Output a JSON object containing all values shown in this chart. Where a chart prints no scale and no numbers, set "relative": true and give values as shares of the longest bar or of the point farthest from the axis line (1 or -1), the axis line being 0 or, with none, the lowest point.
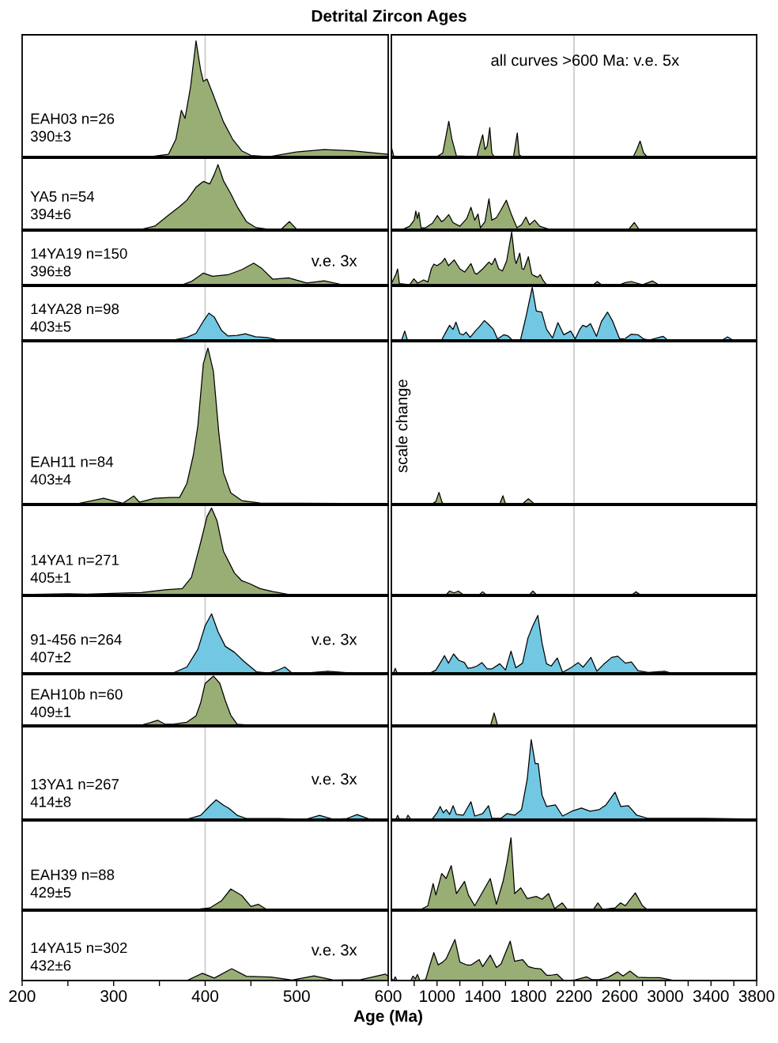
{
  "chart_data": [
    {
      "type": "area",
      "title": "Detrital Zircon Ages",
      "relative": true,
      "xlim": [
        200,
        600
      ],
      "tick_labels": false,
      "annotations": [
        "EAH03 n=26\n390±3"
      ],
      "ref_lines": [
        {
          "axis": "x",
          "value": 400,
          "color": "#cccccc"
        }
      ],
      "series": [
        {
          "color": "#99ae74",
          "x": [
            200,
            340,
            360,
            368,
            374,
            378,
            384,
            390,
            395,
            398,
            402,
            408,
            420,
            430,
            440,
            450,
            470,
            500,
            530,
            560,
            600
          ],
          "values": [
            0,
            0,
            0.02,
            0.15,
            0.4,
            0.33,
            0.6,
            1.0,
            0.75,
            0.65,
            0.67,
            0.55,
            0.3,
            0.15,
            0.05,
            0.01,
            0,
            0.04,
            0.06,
            0.05,
            0.02
          ]
        }
      ]
    },
    {
      "type": "area",
      "subtitle": "all curves >600 Ma: v.e. 5x",
      "relative": true,
      "xlim": [
        600,
        3800
      ],
      "tick_labels": false,
      "ref_lines": [
        {
          "axis": "x",
          "value": 2200,
          "color": "#cccccc"
        }
      ],
      "series": [
        {
          "color": "#99ae74",
          "x": [
            600,
            620,
            640,
            1000,
            1050,
            1080,
            1103,
            1130,
            1170,
            1350,
            1380,
            1400,
            1420,
            1440,
            1462,
            1480,
            1500,
            1670,
            1690,
            1703,
            1720,
            1740,
            2720,
            2750,
            2779,
            2810,
            2840,
            3800
          ],
          "values": [
            0.27,
            0.02,
            0,
            0,
            0.1,
            0.6,
            1.0,
            0.5,
            0.02,
            0,
            0.4,
            0.62,
            0.2,
            0.3,
            0.82,
            0.1,
            0,
            0,
            0.4,
            0.67,
            0.05,
            0,
            0,
            0.2,
            0.44,
            0.1,
            0,
            0
          ]
        }
      ]
    },
    {
      "type": "area",
      "relative": true,
      "xlim": [
        200,
        600
      ],
      "tick_labels": false,
      "annotations": [
        "YA5 n=54\n394±6"
      ],
      "ref_lines": [
        {
          "axis": "x",
          "value": 400,
          "color": "#cccccc"
        }
      ],
      "series": [
        {
          "color": "#99ae74",
          "x": [
            200,
            330,
            345,
            360,
            372,
            380,
            390,
            398,
            405,
            410,
            414,
            420,
            428,
            435,
            445,
            455,
            470,
            483,
            492,
            500,
            600
          ],
          "values": [
            0,
            0,
            0.05,
            0.22,
            0.35,
            0.45,
            0.65,
            0.74,
            0.7,
            0.85,
            1.0,
            0.75,
            0.55,
            0.35,
            0.12,
            0.03,
            0,
            0,
            0.12,
            0,
            0
          ]
        }
      ]
    },
    {
      "type": "area",
      "relative": true,
      "xlim": [
        600,
        3800
      ],
      "tick_labels": false,
      "ref_lines": [
        {
          "axis": "x",
          "value": 2200,
          "color": "#cccccc"
        }
      ],
      "series": [
        {
          "color": "#99ae74",
          "x": [
            600,
            700,
            760,
            800,
            814,
            828,
            841,
            860,
            900,
            960,
            1003,
            1040,
            1060,
            1103,
            1140,
            1200,
            1260,
            1297,
            1330,
            1359,
            1380,
            1420,
            1455,
            1480,
            1520,
            1555,
            1607,
            1650,
            1700,
            1740,
            1779,
            1810,
            1855,
            1900,
            1986,
            2680,
            2728,
            2770,
            3800
          ],
          "values": [
            0,
            0,
            0.1,
            0.3,
            0.6,
            0.35,
            0.55,
            0.05,
            0.05,
            0.2,
            0.45,
            0.25,
            0.3,
            0.48,
            0.22,
            0.1,
            0.35,
            0.72,
            0.3,
            0.5,
            0.05,
            0.25,
            1.0,
            0.3,
            0.38,
            0.6,
            0.95,
            0.5,
            0.05,
            0.15,
            0.4,
            0.15,
            0.3,
            0.1,
            0,
            0,
            0.22,
            0,
            0
          ]
        }
      ]
    },
    {
      "type": "area",
      "relative": true,
      "xlim": [
        200,
        600
      ],
      "tick_labels": false,
      "annotations": [
        "14YA19 n=150\n396±8",
        "v.e. 3x"
      ],
      "ref_lines": [
        {
          "axis": "x",
          "value": 400,
          "color": "#cccccc"
        }
      ],
      "series": [
        {
          "color": "#99ae74",
          "x": [
            200,
            375,
            385,
            398,
            408,
            425,
            440,
            453,
            462,
            474,
            491,
            511,
            530,
            550,
            600
          ],
          "values": [
            0,
            0,
            0.15,
            0.54,
            0.39,
            0.46,
            0.7,
            1.0,
            0.75,
            0.25,
            0.32,
            0.08,
            0.18,
            0,
            0
          ]
        }
      ]
    },
    {
      "type": "area",
      "relative": true,
      "xlim": [
        600,
        3800
      ],
      "tick_labels": false,
      "ref_lines": [
        {
          "axis": "x",
          "value": 2200,
          "color": "#cccccc"
        }
      ],
      "series": [
        {
          "color": "#99ae74",
          "x": [
            600,
            640,
            655,
            670,
            760,
            797,
            830,
            883,
            920,
            950,
            972,
            1000,
            1040,
            1069,
            1100,
            1150,
            1200,
            1242,
            1297,
            1330,
            1348,
            1400,
            1455,
            1480,
            1508,
            1540,
            1573,
            1610,
            1654,
            1680,
            1693,
            1725,
            1745,
            1760,
            1800,
            1830,
            1852,
            1880,
            1904,
            1930,
            1959,
            2370,
            2404,
            2440,
            2600,
            2650,
            2701,
            2750,
            2800,
            2850,
            2887,
            2940,
            3800
          ],
          "values": [
            0.02,
            0.2,
            0.3,
            0.02,
            0,
            0.11,
            0.03,
            0.09,
            0.05,
            0.3,
            0.39,
            0.36,
            0.42,
            0.5,
            0.36,
            0.47,
            0.3,
            0.24,
            0.4,
            0.22,
            0.2,
            0.3,
            0.43,
            0.38,
            0.5,
            0.3,
            0.26,
            0.45,
            1.0,
            0.5,
            0.4,
            0.6,
            0.3,
            0.29,
            0.53,
            0.2,
            0.17,
            0.14,
            0.19,
            0.08,
            0,
            0,
            0.06,
            0,
            0,
            0.04,
            0.06,
            0.03,
            0,
            0.04,
            0.07,
            0,
            0
          ]
        }
      ]
    },
    {
      "type": "area",
      "relative": true,
      "xlim": [
        200,
        600
      ],
      "tick_labels": false,
      "annotations": [
        "14YA28 n=98\n403±5"
      ],
      "ref_lines": [
        {
          "axis": "x",
          "value": 400,
          "color": "#cccccc"
        }
      ],
      "series": [
        {
          "color": "#72c8e3",
          "x": [
            200,
            365,
            380,
            390,
            398,
            404,
            410,
            418,
            425,
            435,
            444,
            455,
            468,
            480,
            600
          ],
          "values": [
            0,
            0,
            0.1,
            0.25,
            0.7,
            1.0,
            0.85,
            0.35,
            0.15,
            0.17,
            0.23,
            0.12,
            0.09,
            0,
            0
          ]
        }
      ]
    },
    {
      "type": "area",
      "relative": true,
      "xlim": [
        600,
        3800
      ],
      "tick_labels": false,
      "ref_lines": [
        {
          "axis": "x",
          "value": 2200,
          "color": "#cccccc"
        }
      ],
      "series": [
        {
          "color": "#72c8e3",
          "x": [
            600,
            690,
            717,
            740,
            1040,
            1090,
            1110,
            1140,
            1166,
            1200,
            1230,
            1255,
            1290,
            1335,
            1370,
            1415,
            1450,
            1494,
            1530,
            1586,
            1620,
            1660,
            1731,
            1780,
            1834,
            1870,
            1917,
            1960,
            2012,
            2059,
            2110,
            2171,
            2210,
            2250,
            2277,
            2310,
            2344,
            2397,
            2440,
            2494,
            2540,
            2600,
            2650,
            2700,
            2760,
            2810,
            2860,
            2979,
            3020,
            3500,
            3545,
            3590,
            3800
          ],
          "values": [
            0,
            0,
            0.17,
            0,
            0,
            0.2,
            0.28,
            0.2,
            0.34,
            0.12,
            0.1,
            0.15,
            0.05,
            0.17,
            0.25,
            0.37,
            0.3,
            0.2,
            0.02,
            0.1,
            0.08,
            0,
            0,
            0.45,
            1.0,
            0.55,
            0.53,
            0.2,
            0.04,
            0.33,
            0.1,
            0.17,
            0.02,
            0.2,
            0.28,
            0.25,
            0.31,
            0.07,
            0.35,
            0.53,
            0.35,
            0.02,
            0.03,
            0.11,
            0.1,
            0.02,
            0,
            0.07,
            0,
            0,
            0.06,
            0,
            0
          ]
        }
      ]
    },
    {
      "type": "area",
      "relative": true,
      "xlim": [
        200,
        600
      ],
      "tick_labels": false,
      "annotations": [
        "EAH11 n=84\n403±4"
      ],
      "ref_lines": [
        {
          "axis": "x",
          "value": 400,
          "color": "#cccccc"
        }
      ],
      "series": [
        {
          "color": "#99ae74",
          "x": [
            200,
            260,
            289,
            310,
            322,
            328,
            345,
            362,
            372,
            380,
            387,
            392,
            398,
            403,
            409,
            415,
            420,
            428,
            440,
            460,
            600
          ],
          "values": [
            0,
            0,
            0.035,
            0.003,
            0.05,
            0.01,
            0.035,
            0.04,
            0.04,
            0.13,
            0.31,
            0.5,
            0.9,
            1.0,
            0.85,
            0.45,
            0.2,
            0.07,
            0.02,
            0.005,
            0
          ]
        }
      ]
    },
    {
      "type": "area",
      "relative": true,
      "xlim": [
        600,
        3800
      ],
      "tick_labels": false,
      "annotations": [
        "scale change"
      ],
      "ref_lines": [
        {
          "axis": "x",
          "value": 2200,
          "color": "#cccccc"
        }
      ],
      "series": [
        {
          "color": "#99ae74",
          "x": [
            600,
            960,
            990,
            1017,
            1045,
            1060,
            1550,
            1577,
            1600,
            1750,
            1800,
            1850,
            3800
          ],
          "values": [
            0,
            0,
            0.2,
            1.0,
            0.1,
            0,
            0,
            0.7,
            0,
            0,
            0.43,
            0,
            0
          ]
        }
      ]
    },
    {
      "type": "area",
      "relative": true,
      "xlim": [
        200,
        600
      ],
      "tick_labels": false,
      "annotations": [
        "14YA1 n=271\n405±1"
      ],
      "ref_lines": [
        {
          "axis": "x",
          "value": 400,
          "color": "#cccccc"
        }
      ],
      "series": [
        {
          "color": "#99ae74",
          "x": [
            200,
            250,
            270,
            306,
            330,
            356,
            375,
            385,
            395,
            402,
            407,
            413,
            420,
            432,
            440,
            448,
            460,
            474,
            493,
            600
          ],
          "values": [
            0,
            0.01,
            0.005,
            0.016,
            0.025,
            0.055,
            0.07,
            0.2,
            0.6,
            0.9,
            1.0,
            0.85,
            0.5,
            0.25,
            0.16,
            0.13,
            0.07,
            0.035,
            0,
            0
          ]
        }
      ]
    },
    {
      "type": "area",
      "relative": true,
      "xlim": [
        600,
        3800
      ],
      "tick_labels": false,
      "ref_lines": [
        {
          "axis": "x",
          "value": 2200,
          "color": "#cccccc"
        }
      ],
      "series": [
        {
          "color": "#99ae74",
          "x": [
            600,
            1080,
            1110,
            1150,
            1186,
            1230,
            1370,
            1400,
            1430,
            1810,
            1840,
            1870,
            2710,
            2742,
            2780,
            3800
          ],
          "values": [
            0,
            0,
            1,
            0.5,
            1,
            0,
            0,
            0.8,
            0,
            0,
            1,
            0,
            0,
            0.8,
            0,
            0
          ]
        }
      ]
    },
    {
      "type": "area",
      "relative": true,
      "xlim": [
        200,
        600
      ],
      "tick_labels": false,
      "annotations": [
        "91-456 n=264\n407±2",
        "v.e. 3x"
      ],
      "ref_lines": [
        {
          "axis": "x",
          "value": 400,
          "color": "#cccccc"
        }
      ],
      "series": [
        {
          "color": "#72c8e3",
          "x": [
            200,
            365,
            380,
            392,
            400,
            407,
            414,
            422,
            432,
            442,
            456,
            470,
            480,
            487,
            494,
            510,
            534,
            560,
            600
          ],
          "values": [
            0,
            0,
            0.1,
            0.4,
            0.8,
            1.0,
            0.7,
            0.45,
            0.35,
            0.2,
            0.02,
            0,
            0.05,
            0.1,
            0.01,
            0,
            0.03,
            0,
            0
          ]
        }
      ]
    },
    {
      "type": "area",
      "relative": true,
      "xlim": [
        600,
        3800
      ],
      "tick_labels": false,
      "ref_lines": [
        {
          "axis": "x",
          "value": 2200,
          "color": "#cccccc"
        }
      ],
      "series": [
        {
          "color": "#72c8e3",
          "x": [
            600,
            620,
            634,
            650,
            940,
            990,
            1030,
            1066,
            1100,
            1145,
            1190,
            1240,
            1270,
            1308,
            1350,
            1393,
            1440,
            1480,
            1550,
            1600,
            1648,
            1690,
            1749,
            1797,
            1840,
            1883,
            1920,
            1959,
            2000,
            2053,
            2100,
            2180,
            2236,
            2280,
            2348,
            2400,
            2460,
            2530,
            2584,
            2650,
            2703,
            2760,
            2850,
            2993,
            3050,
            3800
          ],
          "values": [
            0,
            0.01,
            0.08,
            0,
            0,
            0.05,
            0.18,
            0.3,
            0.17,
            0.33,
            0.22,
            0.18,
            0.08,
            0.09,
            0.12,
            0.18,
            0.07,
            0.07,
            0.16,
            0.05,
            0.38,
            0.09,
            0.17,
            0.61,
            0.82,
            1.0,
            0.52,
            0.16,
            0.12,
            0.26,
            0.01,
            0.1,
            0.18,
            0.1,
            0.27,
            0.03,
            0.15,
            0.27,
            0.29,
            0.17,
            0.19,
            0.04,
            0.01,
            0.03,
            0,
            0
          ]
        }
      ]
    },
    {
      "type": "area",
      "relative": true,
      "xlim": [
        200,
        600
      ],
      "tick_labels": false,
      "annotations": [
        "EAH10b n=60\n409±1"
      ],
      "ref_lines": [
        {
          "axis": "x",
          "value": 400,
          "color": "#cccccc"
        }
      ],
      "series": [
        {
          "color": "#99ae74",
          "x": [
            200,
            330,
            340,
            348,
            356,
            365,
            380,
            390,
            395,
            400,
            409,
            416,
            422,
            428,
            435,
            450,
            600
          ],
          "values": [
            0,
            0,
            0.05,
            0.1,
            0.02,
            0.02,
            0.06,
            0.19,
            0.45,
            0.85,
            1.0,
            0.85,
            0.5,
            0.2,
            0.02,
            0,
            0
          ]
        }
      ]
    },
    {
      "type": "area",
      "relative": true,
      "xlim": [
        600,
        3800
      ],
      "tick_labels": false,
      "ref_lines": [
        {
          "axis": "x",
          "value": 2200,
          "color": "#cccccc"
        }
      ],
      "series": [
        {
          "color": "#99ae74",
          "x": [
            600,
            1470,
            1500,
            1530,
            3800
          ],
          "values": [
            0,
            0,
            1,
            0,
            0
          ]
        }
      ]
    },
    {
      "type": "area",
      "relative": true,
      "xlim": [
        200,
        600
      ],
      "tick_labels": false,
      "annotations": [
        "13YA1 n=267\n414±8",
        "v.e. 3x"
      ],
      "ref_lines": [
        {
          "axis": "x",
          "value": 400,
          "color": "#cccccc"
        }
      ],
      "series": [
        {
          "color": "#72c8e3",
          "x": [
            200,
            380,
            395,
            405,
            412,
            420,
            426,
            435,
            445,
            480,
            510,
            525,
            540,
            555,
            566,
            580,
            600
          ],
          "values": [
            0,
            0,
            0.2,
            0.68,
            1.0,
            0.72,
            0.56,
            0.2,
            0.04,
            0.04,
            0,
            0.2,
            0,
            0.04,
            0.24,
            0,
            0
          ]
        }
      ]
    },
    {
      "type": "area",
      "relative": true,
      "xlim": [
        600,
        3800
      ],
      "tick_labels": false,
      "ref_lines": [
        {
          "axis": "x",
          "value": 2200,
          "color": "#cccccc"
        }
      ],
      "series": [
        {
          "color": "#72c8e3",
          "x": [
            600,
            640,
            655,
            670,
            730,
            745,
            770,
            957,
            1000,
            1028,
            1055,
            1081,
            1110,
            1141,
            1170,
            1230,
            1297,
            1330,
            1400,
            1451,
            1480,
            1560,
            1612,
            1680,
            1740,
            1790,
            1825,
            1860,
            1886,
            1920,
            1960,
            2037,
            2100,
            2180,
            2265,
            2340,
            2420,
            2480,
            2559,
            2610,
            2676,
            2750,
            2850,
            3069,
            3345,
            3800
          ],
          "values": [
            0,
            0,
            0.05,
            0,
            0,
            0.05,
            0,
            0,
            0.08,
            0.16,
            0.08,
            0.12,
            0.06,
            0.17,
            0.06,
            0.05,
            0.22,
            0.04,
            0.07,
            0.17,
            0.01,
            0.01,
            0.07,
            0.05,
            0.12,
            0.5,
            1.0,
            0.7,
            0.7,
            0.3,
            0.16,
            0.18,
            0.04,
            0.1,
            0.14,
            0.1,
            0.12,
            0.18,
            0.34,
            0.16,
            0.17,
            0.05,
            0.01,
            0.01,
            0.01,
            0
          ]
        }
      ]
    },
    {
      "type": "area",
      "relative": true,
      "xlim": [
        200,
        600
      ],
      "tick_labels": false,
      "annotations": [
        "EAH39 n=88\n429±5"
      ],
      "ref_lines": [
        {
          "axis": "x",
          "value": 400,
          "color": "#cccccc"
        }
      ],
      "series": [
        {
          "color": "#99ae74",
          "x": [
            200,
            390,
            405,
            418,
            428,
            440,
            450,
            458,
            467,
            600
          ],
          "values": [
            0,
            0,
            0.07,
            0.43,
            1.0,
            0.68,
            0.14,
            0.25,
            0,
            0
          ]
        }
      ]
    },
    {
      "type": "area",
      "relative": true,
      "xlim": [
        600,
        3800
      ],
      "tick_labels": false,
      "ref_lines": [
        {
          "axis": "x",
          "value": 2200,
          "color": "#cccccc"
        }
      ],
      "series": [
        {
          "color": "#99ae74",
          "x": [
            600,
            860,
            920,
            966,
            990,
            1041,
            1080,
            1124,
            1170,
            1241,
            1275,
            1330,
            1420,
            1466,
            1520,
            1580,
            1612,
            1648,
            1680,
            1734,
            1790,
            1869,
            1920,
            1977,
            2030,
            2097,
            2140,
            2370,
            2409,
            2450,
            2560,
            2608,
            2650,
            2737,
            2800,
            2840,
            3800
          ],
          "values": [
            0,
            0,
            0.05,
            0.36,
            0.2,
            0.5,
            0.43,
            0.61,
            0.22,
            0.39,
            0.2,
            0.05,
            0.3,
            0.43,
            0.07,
            0.4,
            0.65,
            1.0,
            0.22,
            0.3,
            0.15,
            0.18,
            0.14,
            0.22,
            0.01,
            0.09,
            0,
            0,
            0.09,
            0,
            0.02,
            0.09,
            0.05,
            0.23,
            0.05,
            0,
            0
          ]
        }
      ]
    },
    {
      "type": "area",
      "relative": true,
      "xlim": [
        200,
        600
      ],
      "xlabel": "Age (Ma)",
      "tick_labels": "x",
      "annotations": [
        "14YA15 n=302\n432±6",
        "v.e. 3x"
      ],
      "ref_lines": [
        {
          "axis": "x",
          "value": 400,
          "color": "#cccccc"
        }
      ],
      "xticks": [
        200,
        {
          "value": 250,
          "label": null
        },
        300,
        {
          "value": 350,
          "label": null
        },
        400,
        {
          "value": 450,
          "label": null
        },
        500,
        {
          "value": 550,
          "label": null
        },
        600
      ],
      "series": [
        {
          "color": "#99ae74",
          "x": [
            200,
            380,
            397,
            410,
            429,
            445,
            472,
            495,
            519,
            540,
            570,
            597,
            600
          ],
          "values": [
            0,
            0,
            0.61,
            0.21,
            1.0,
            0.36,
            0.29,
            0.04,
            0.39,
            0.04,
            0.07,
            0.54,
            0.36
          ]
        }
      ]
    },
    {
      "type": "area",
      "relative": true,
      "xlim": [
        600,
        3800
      ],
      "tick_labels": "x",
      "ref_lines": [
        {
          "axis": "x",
          "value": 2200,
          "color": "#cccccc"
        }
      ],
      "xticks": [
        {
          "value": 800,
          "label": null
        },
        1000,
        {
          "value": 1200,
          "label": null
        },
        1400,
        {
          "value": 1600,
          "label": null
        },
        1800,
        {
          "value": 2000,
          "label": null
        },
        2200,
        {
          "value": 2400,
          "label": null
        },
        2600,
        {
          "value": 2800,
          "label": null
        },
        3000,
        {
          "value": 3200,
          "label": null
        },
        3400,
        {
          "value": 3600,
          "label": null
        },
        3800
      ],
      "series": [
        {
          "color": "#99ae74",
          "x": [
            600,
            620,
            634,
            650,
            770,
            790,
            810,
            828,
            850,
            900,
            940,
            972,
            1010,
            1050,
            1080,
            1157,
            1200,
            1260,
            1300,
            1369,
            1400,
            1466,
            1520,
            1560,
            1641,
            1680,
            1749,
            1800,
            1850,
            1910,
            1960,
            2000,
            2053,
            2110,
            2200,
            2270,
            2310,
            2360,
            2420,
            2500,
            2580,
            2630,
            2690,
            2760,
            2850,
            2950,
            3080,
            3800
          ],
          "values": [
            0.05,
            0,
            0.09,
            0,
            0,
            0.11,
            0.04,
            0.15,
            0,
            0.02,
            0.4,
            0.68,
            0.38,
            0.45,
            0.53,
            1.0,
            0.45,
            0.38,
            0.38,
            0.51,
            0.34,
            0.62,
            0.32,
            0.4,
            0.96,
            0.47,
            0.51,
            0.34,
            0.3,
            0.28,
            0.13,
            0.13,
            0.15,
            0,
            0.01,
            0.06,
            0.09,
            0.02,
            0.02,
            0.08,
            0.21,
            0.11,
            0.23,
            0.08,
            0.07,
            0.07,
            0,
            0
          ]
        }
      ]
    }
  ]
}
